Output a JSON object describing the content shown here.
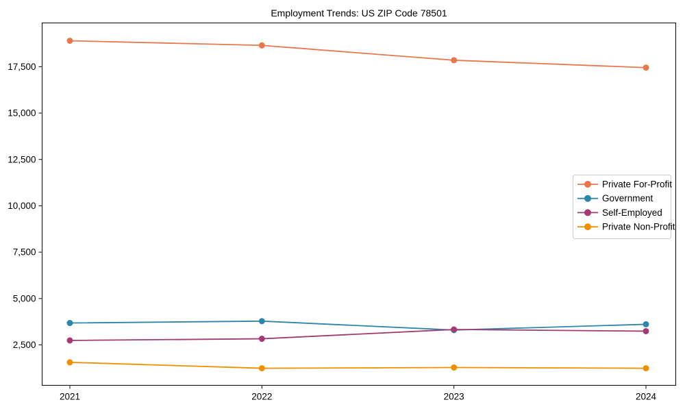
{
  "chart_data": {
    "type": "line",
    "title": "Employment Trends: US ZIP Code 78501",
    "xlabel": "",
    "ylabel": "",
    "x": [
      2021,
      2022,
      2023,
      2024
    ],
    "series": [
      {
        "name": "Private For-Profit",
        "color": "#E8784B",
        "values": [
          18900,
          18650,
          17850,
          17450
        ]
      },
      {
        "name": "Government",
        "color": "#2E86AB",
        "values": [
          3680,
          3780,
          3300,
          3610
        ]
      },
      {
        "name": "Self-Employed",
        "color": "#A23B72",
        "values": [
          2740,
          2830,
          3330,
          3240
        ]
      },
      {
        "name": "Private Non-Profit",
        "color": "#F18F01",
        "values": [
          1560,
          1240,
          1280,
          1240
        ]
      }
    ],
    "yticks": [
      2500,
      5000,
      7500,
      10000,
      12500,
      15000,
      17500
    ],
    "ytick_labels": [
      "2,500",
      "5,000",
      "7,500",
      "10,000",
      "12,500",
      "15,000",
      "17,500"
    ],
    "xtick_labels": [
      "2021",
      "2022",
      "2023",
      "2024"
    ],
    "ylim": [
      320,
      19860
    ],
    "grid": false,
    "legend_position": "right",
    "axis_color": "#000000",
    "legend_border_color": "#cccccc",
    "background_color": "#ffffff"
  }
}
